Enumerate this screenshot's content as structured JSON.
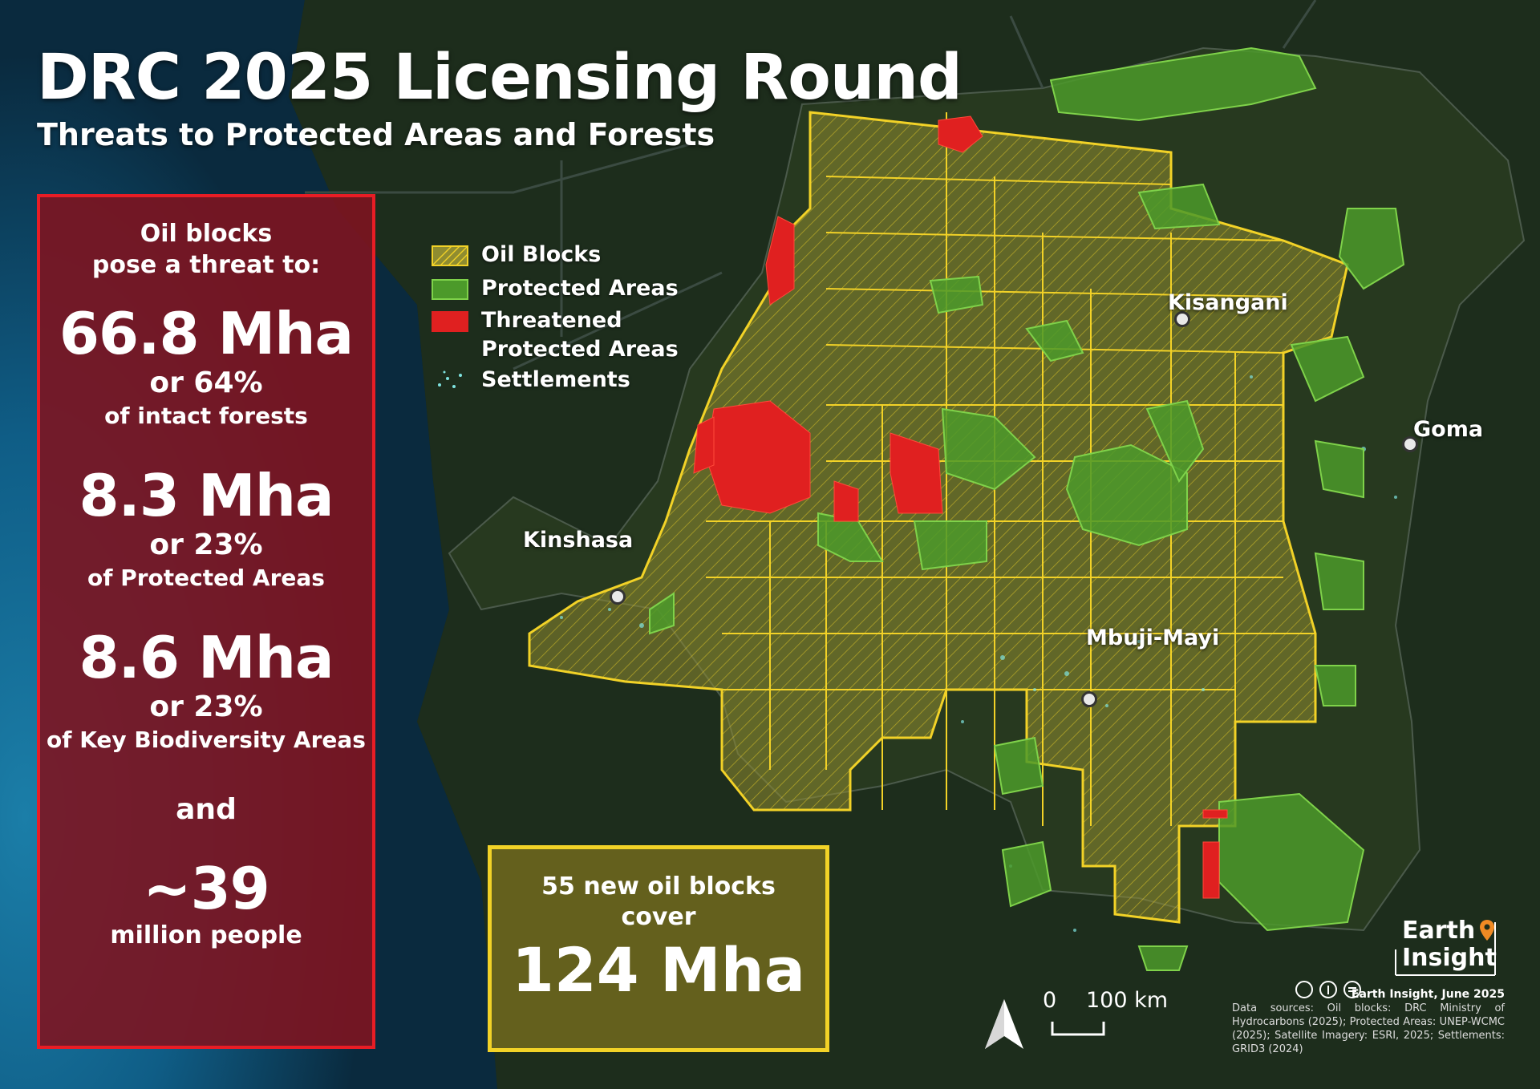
{
  "title": "DRC 2025 Licensing Round",
  "subtitle": "Threats to Protected Areas and Forests",
  "stats_panel": {
    "intro_line1": "Oil blocks",
    "intro_line2": "pose a threat to:",
    "items": [
      {
        "big": "66.8 Mha",
        "pct": "or 64%",
        "of": "of intact forests"
      },
      {
        "big": "8.3 Mha",
        "pct": "or 23%",
        "of": "of Protected Areas"
      },
      {
        "big": "8.6 Mha",
        "pct": "or 23%",
        "of": "of Key Biodiversity Areas"
      }
    ],
    "and": "and",
    "people_big": "~39",
    "people_label": "million people"
  },
  "legend": {
    "oil_blocks": "Oil Blocks",
    "protected_areas": "Protected Areas",
    "threatened_line1": "Threatened",
    "threatened_line2": "Protected Areas",
    "settlements": "Settlements"
  },
  "cities": {
    "kinshasa": "Kinshasa",
    "kisangani": "Kisangani",
    "goma": "Goma",
    "mbuji_mayi": "Mbuji-Mayi"
  },
  "oil_box": {
    "line1": "55 new oil blocks",
    "line2": "cover",
    "big": "124 Mha"
  },
  "scale_bar": {
    "zero": "0",
    "distance": "100 km"
  },
  "logo": {
    "line1": "Earth",
    "line2": "Insight"
  },
  "credit": {
    "head": "Earth Insight, June 2025",
    "body": "Data sources: Oil blocks: DRC Ministry of Hydrocarbons (2025); Protected Areas: UNEP-WCMC (2025); Satellite Imagery: ESRI, 2025; Settlements: GRID3 (2024)"
  },
  "colors": {
    "oil_block_fill": "#a6a23a",
    "oil_block_stroke": "#f2d227",
    "protected": "#4c9a2a",
    "threatened": "#e02020",
    "stats_panel_bg": "#7d1420",
    "stats_panel_border": "#e81d25",
    "ocean": "#0f5d86",
    "settlements": "#7fe3e0"
  }
}
